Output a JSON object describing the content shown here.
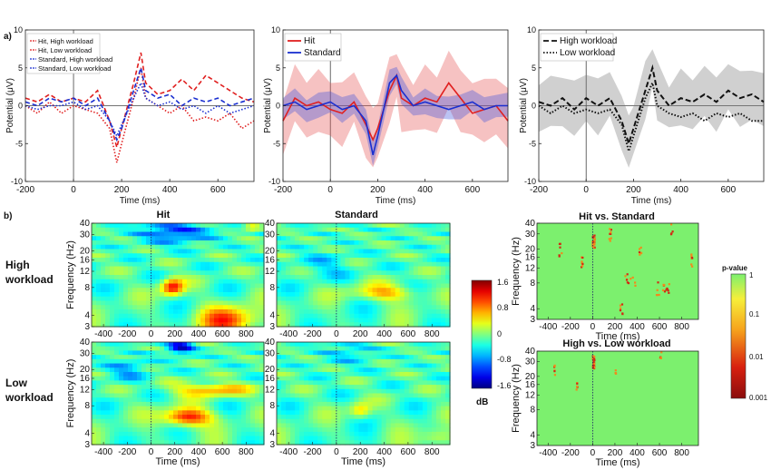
{
  "panel_labels": {
    "a": "a)",
    "b": "b)"
  },
  "erp_common": {
    "ylabel": "Potential (μV)",
    "xlabel": "Time (ms)",
    "xticks": [
      -200,
      0,
      200,
      400,
      600
    ],
    "yticks": [
      -10,
      -5,
      0,
      5,
      10
    ],
    "xlim": [
      -200,
      750
    ],
    "ylim": [
      -10,
      10
    ]
  },
  "chart_data": [
    {
      "type": "line",
      "panel": "a1",
      "xlim": [
        -200,
        750
      ],
      "ylim": [
        -10,
        10
      ],
      "x": [
        -200,
        -150,
        -100,
        -50,
        0,
        50,
        100,
        150,
        180,
        200,
        250,
        280,
        300,
        350,
        400,
        450,
        500,
        550,
        600,
        650,
        700,
        750
      ],
      "series": [
        {
          "name": "Hit, High workload",
          "color": "#e02020",
          "dash": "5,3",
          "values": [
            1,
            0.5,
            1.5,
            0.5,
            1,
            0.5,
            2,
            -2,
            -5.5,
            -3,
            3,
            7,
            3,
            1.5,
            2,
            3.5,
            2,
            4,
            3,
            2,
            1,
            0.5
          ]
        },
        {
          "name": "Hit, Low workload",
          "color": "#e02020",
          "dash": "1.5,2",
          "values": [
            0,
            -1,
            0.5,
            -1,
            0,
            -0.5,
            -1,
            -3,
            -7.5,
            -5,
            1,
            5,
            1,
            0,
            -1,
            0,
            -2,
            -1.5,
            -2,
            -1,
            -3,
            -2
          ]
        },
        {
          "name": "Standard, High workload",
          "color": "#1a2fd0",
          "dash": "5,3",
          "values": [
            0.5,
            0,
            1,
            0.5,
            1,
            0,
            1,
            -2,
            -4.5,
            -3,
            2,
            5,
            2,
            1,
            1.5,
            0,
            1,
            0.5,
            1,
            0,
            0.5,
            1
          ]
        },
        {
          "name": "Standard, Low workload",
          "color": "#1a2fd0",
          "dash": "1.5,2",
          "values": [
            0,
            -0.5,
            0,
            0,
            0.5,
            -0.5,
            0,
            -2,
            -4,
            -2.5,
            1,
            3,
            1,
            0,
            0.5,
            -0.5,
            0,
            -1,
            0,
            -1,
            -0.5,
            0
          ]
        }
      ]
    },
    {
      "type": "line",
      "panel": "a2",
      "xlim": [
        -200,
        750
      ],
      "ylim": [
        -10,
        10
      ],
      "x": [
        -200,
        -150,
        -100,
        -50,
        0,
        50,
        100,
        150,
        180,
        200,
        250,
        280,
        300,
        350,
        400,
        450,
        500,
        550,
        600,
        650,
        700,
        750
      ],
      "series": [
        {
          "name": "Hit",
          "color": "#e02020",
          "dash": "",
          "band": 2.5,
          "values": [
            -2,
            1,
            0,
            0.5,
            -0.5,
            -1,
            0.5,
            -2.5,
            -4.5,
            -3,
            2,
            4,
            1,
            0,
            1,
            0.5,
            3,
            1,
            -1,
            -0.5,
            0,
            -2
          ]
        },
        {
          "name": "Standard",
          "color": "#1a2fd0",
          "dash": "",
          "band": 1,
          "values": [
            0,
            0.5,
            -0.5,
            0,
            0.5,
            -0.5,
            0,
            -2,
            -6.5,
            -4,
            3,
            4,
            2,
            0,
            0.5,
            0,
            -0.5,
            0,
            0.5,
            -0.5,
            0,
            0
          ]
        }
      ]
    },
    {
      "type": "line",
      "panel": "a3",
      "xlim": [
        -200,
        750
      ],
      "ylim": [
        -10,
        10
      ],
      "x": [
        -200,
        -150,
        -100,
        -50,
        0,
        50,
        100,
        150,
        180,
        200,
        250,
        280,
        300,
        350,
        400,
        450,
        500,
        550,
        600,
        650,
        700,
        750
      ],
      "series": [
        {
          "name": "High workload",
          "color": "#111111",
          "dash": "6,3",
          "band": 2.2,
          "values": [
            0.5,
            0,
            1,
            -0.5,
            1,
            0,
            1,
            -2,
            -5,
            -3,
            2,
            5,
            2,
            0,
            1,
            0.5,
            1.5,
            0.5,
            2,
            1,
            1.5,
            0.5
          ]
        },
        {
          "name": "Low workload",
          "color": "#111111",
          "dash": "1.5,2",
          "band": 0,
          "values": [
            0,
            -1,
            0,
            -1,
            -0.5,
            -1,
            -0.5,
            -2.5,
            -6,
            -4,
            1,
            3,
            0,
            -1,
            -1.5,
            -1,
            -2,
            -1,
            -1.5,
            -1,
            -2,
            -2
          ]
        }
      ]
    },
    {
      "type": "heatmap",
      "panel": "b-tf",
      "xlim": [
        -500,
        950
      ],
      "ylim_hz": [
        3,
        40
      ],
      "color_range_db": [
        -1.6,
        1.6
      ],
      "colorbar_ticks": [
        1.6,
        0.8,
        0,
        -0.8,
        -1.6
      ],
      "colorbar_unit": "dB"
    },
    {
      "type": "heatmap",
      "panel": "b-p",
      "xlim": [
        -500,
        950
      ],
      "ylim_hz": [
        3,
        40
      ],
      "color_range": [
        0.001,
        1
      ],
      "colorbar_title": "p-value",
      "colorbar_ticks": [
        "1",
        "0.1",
        "0.01",
        "0.001"
      ]
    }
  ],
  "heatmaps": {
    "xticks": [
      -400,
      -200,
      0,
      200,
      400,
      600,
      800
    ],
    "yticks": [
      40,
      30,
      20,
      16,
      12,
      8,
      4,
      3
    ],
    "ylabel": "Frequency (Hz)",
    "xlabel": "Time (ms)",
    "col_titles": {
      "hit": "Hit",
      "standard": "Standard",
      "hit_vs_standard": "Hit vs. Standard",
      "high_vs_low": "High vs. Low workload"
    },
    "row_labels": {
      "high_1": "High",
      "high_2": "workload",
      "low_1": "Low",
      "low_2": "workload"
    }
  },
  "colorbar": {
    "ticks": [
      "1.6",
      "0.8",
      "0",
      "-0.8",
      "-1.6"
    ],
    "unit": "dB"
  },
  "pvalue_bar": {
    "title": "p-value",
    "ticks": [
      "1",
      "0.1",
      "0.01",
      "0.001"
    ]
  }
}
